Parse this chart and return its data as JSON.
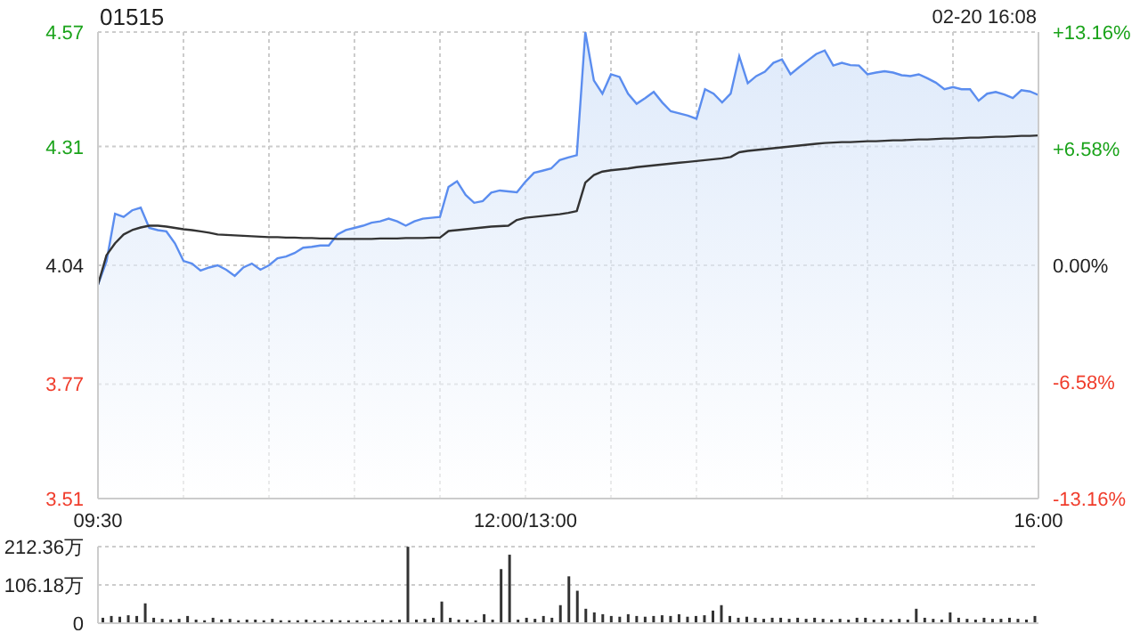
{
  "chart_data": [
    {
      "type": "line",
      "title": "01515",
      "annotations": [
        "02-20 16:08"
      ],
      "categories": [
        "09:30",
        null,
        null,
        null,
        null,
        null,
        null,
        null,
        null,
        null,
        null,
        null,
        null,
        null,
        null,
        null,
        null,
        null,
        null,
        null,
        null,
        null,
        null,
        null,
        null,
        null,
        null,
        null,
        null,
        null,
        null,
        null,
        null,
        null,
        null,
        null,
        null,
        null,
        null,
        null,
        null,
        null,
        null,
        null,
        null,
        null,
        null,
        null,
        null,
        null,
        "12:00/13:00",
        null,
        null,
        null,
        null,
        null,
        null,
        null,
        null,
        null,
        null,
        null,
        null,
        null,
        null,
        null,
        null,
        null,
        null,
        null,
        null,
        null,
        null,
        null,
        null,
        null,
        null,
        null,
        null,
        null,
        null,
        null,
        null,
        null,
        null,
        null,
        null,
        null,
        null,
        null,
        null,
        null,
        null,
        null,
        null,
        null,
        null,
        null,
        null,
        null,
        null,
        null,
        null,
        null,
        null,
        null,
        null,
        null,
        null,
        null,
        "16:00"
      ],
      "ylim": [
        3.51,
        4.57
      ],
      "yticks": [
        3.51,
        3.77,
        4.04,
        4.31,
        4.57
      ],
      "y2lim": [
        -13.16,
        13.16
      ],
      "y2ticks": [
        {
          "value": -13.16,
          "label": "-13.16%"
        },
        {
          "value": -6.58,
          "label": "-6.58%"
        },
        {
          "value": 0,
          "label": "0.00%"
        },
        {
          "value": 6.58,
          "label": "+6.58%"
        },
        {
          "value": 13.16,
          "label": "+13.16%"
        }
      ],
      "grid": true,
      "line_style": "solid",
      "series": [
        {
          "type": "area",
          "color": "#5b8def",
          "values": [
            3.996,
            4.049,
            4.157,
            4.15,
            4.165,
            4.171,
            4.125,
            4.12,
            4.117,
            4.09,
            4.05,
            4.044,
            4.028,
            4.035,
            4.04,
            4.03,
            4.016,
            4.035,
            4.044,
            4.03,
            4.04,
            4.056,
            4.06,
            4.068,
            4.08,
            4.082,
            4.085,
            4.085,
            4.11,
            4.12,
            4.125,
            4.13,
            4.137,
            4.14,
            4.146,
            4.14,
            4.13,
            4.14,
            4.146,
            4.148,
            4.15,
            4.218,
            4.231,
            4.2,
            4.182,
            4.186,
            4.205,
            4.21,
            4.208,
            4.206,
            4.23,
            4.25,
            4.255,
            4.26,
            4.279,
            4.285,
            4.29,
            4.57,
            4.46,
            4.43,
            4.474,
            4.468,
            4.43,
            4.407,
            4.42,
            4.434,
            4.41,
            4.39,
            4.385,
            4.38,
            4.373,
            4.44,
            4.43,
            4.41,
            4.43,
            4.515,
            4.454,
            4.47,
            4.48,
            4.5,
            4.508,
            4.474,
            4.49,
            4.505,
            4.52,
            4.528,
            4.494,
            4.5,
            4.495,
            4.494,
            4.474,
            4.478,
            4.481,
            4.478,
            4.472,
            4.47,
            4.474,
            4.465,
            4.455,
            4.44,
            4.445,
            4.44,
            4.44,
            4.414,
            4.43,
            4.434,
            4.428,
            4.42,
            4.438,
            4.435,
            4.427
          ]
        },
        {
          "type": "line",
          "color": "#333333",
          "values": [
            3.996,
            4.063,
            4.09,
            4.11,
            4.12,
            4.126,
            4.13,
            4.13,
            4.128,
            4.125,
            4.122,
            4.12,
            4.117,
            4.114,
            4.11,
            4.109,
            4.108,
            4.107,
            4.106,
            4.105,
            4.104,
            4.104,
            4.103,
            4.103,
            4.102,
            4.102,
            4.101,
            4.101,
            4.1,
            4.1,
            4.1,
            4.1,
            4.1,
            4.101,
            4.101,
            4.101,
            4.102,
            4.102,
            4.102,
            4.103,
            4.103,
            4.118,
            4.12,
            4.122,
            4.124,
            4.126,
            4.128,
            4.129,
            4.13,
            4.143,
            4.148,
            4.15,
            4.152,
            4.154,
            4.156,
            4.159,
            4.163,
            4.228,
            4.245,
            4.253,
            4.256,
            4.258,
            4.26,
            4.263,
            4.265,
            4.267,
            4.269,
            4.271,
            4.273,
            4.275,
            4.277,
            4.279,
            4.281,
            4.283,
            4.286,
            4.297,
            4.3,
            4.302,
            4.304,
            4.306,
            4.308,
            4.31,
            4.312,
            4.314,
            4.316,
            4.318,
            4.319,
            4.32,
            4.32,
            4.321,
            4.322,
            4.322,
            4.323,
            4.324,
            4.324,
            4.325,
            4.326,
            4.326,
            4.327,
            4.328,
            4.328,
            4.329,
            4.33,
            4.33,
            4.331,
            4.332,
            4.332,
            4.333,
            4.334,
            4.334,
            4.335
          ]
        }
      ]
    },
    {
      "type": "bar",
      "color": "#333333",
      "tick_labels": "y",
      "grid": "y",
      "categories": [
        null,
        null,
        null,
        null,
        null,
        null,
        null,
        null,
        null,
        null,
        null,
        null,
        null,
        null,
        null,
        null,
        null,
        null,
        null,
        null,
        null,
        null,
        null,
        null,
        null,
        null,
        null,
        null,
        null,
        null,
        null,
        null,
        null,
        null,
        null,
        null,
        null,
        null,
        null,
        null,
        null,
        null,
        null,
        null,
        null,
        null,
        null,
        null,
        null,
        null,
        null,
        null,
        null,
        null,
        null,
        null,
        null,
        null,
        null,
        null,
        null,
        null,
        null,
        null,
        null,
        null,
        null,
        null,
        null,
        null,
        null,
        null,
        null,
        null,
        null,
        null,
        null,
        null,
        null,
        null,
        null,
        null,
        null,
        null,
        null,
        null,
        null,
        null,
        null,
        null,
        null,
        null,
        null,
        null,
        null,
        null,
        null,
        null,
        null,
        null,
        null,
        null,
        null,
        null,
        null,
        null,
        null,
        null,
        null,
        null,
        null
      ],
      "ylim": [
        0,
        212.36
      ],
      "yticks": [
        0,
        {
          "value": 106.18,
          "label": "106.18万"
        },
        {
          "value": 212.36,
          "label": "212.36万"
        }
      ],
      "values": [
        15,
        20,
        18,
        22,
        20,
        55,
        15,
        12,
        10,
        12,
        20,
        10,
        8,
        15,
        10,
        12,
        8,
        10,
        10,
        8,
        12,
        8,
        8,
        8,
        10,
        8,
        8,
        10,
        8,
        8,
        8,
        8,
        8,
        10,
        8,
        10,
        212,
        10,
        12,
        15,
        60,
        15,
        10,
        10,
        8,
        25,
        10,
        150,
        190,
        10,
        15,
        12,
        20,
        15,
        50,
        130,
        90,
        40,
        30,
        25,
        20,
        18,
        25,
        20,
        18,
        20,
        22,
        20,
        25,
        18,
        20,
        22,
        35,
        50,
        20,
        15,
        18,
        15,
        12,
        15,
        15,
        12,
        15,
        12,
        15,
        12,
        10,
        12,
        10,
        15,
        15,
        10,
        12,
        10,
        12,
        10,
        40,
        15,
        12,
        10,
        30,
        15,
        12,
        10,
        15,
        12,
        12,
        15,
        12,
        10,
        20
      ]
    }
  ]
}
